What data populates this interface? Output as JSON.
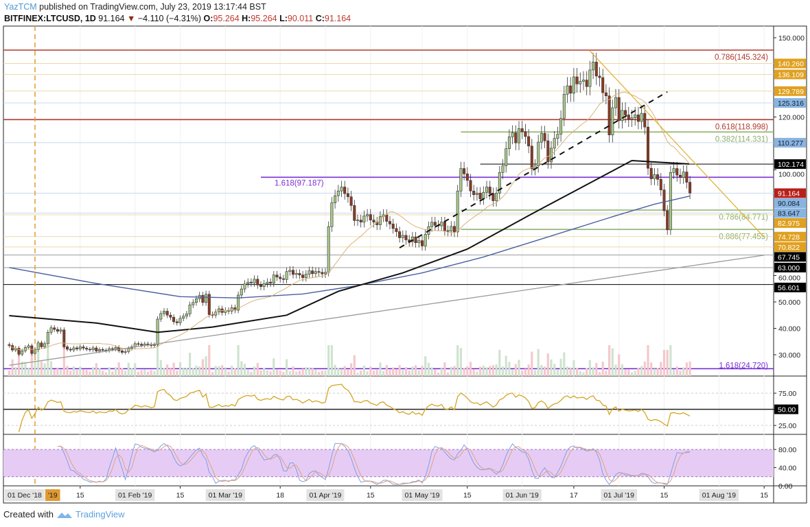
{
  "header": {
    "user": "YazTCM",
    "published": "published on TradingView.com, July 23, 2019 13:17:44 BST",
    "symbol": "BITFINEX:LTCUSD, 1D",
    "last": "91.164",
    "change_arrow": "▼",
    "change": "−4.110 (−4.31%)",
    "o_label": "O:",
    "o": "95.264",
    "h_label": "H:",
    "h": "95.264",
    "l_label": "L:",
    "l": "90.011",
    "c_label": "C:",
    "c": "91.164"
  },
  "footer": {
    "created_with": "Created with",
    "brand": "TradingView",
    "logo_icon": "tradingview-cloud-icon"
  },
  "colors": {
    "up": "#a8c98a",
    "down": "#8b3a22",
    "ma20": "#d9b27a",
    "ma100": "#111111",
    "ma200": "#4a5fa0",
    "fib_red": "#b03a2e",
    "fib_green": "#8fb06a",
    "fib_purple": "#7a2fd6",
    "trend": "#e0b43a",
    "rsi": "#d4a521",
    "stoch_k": "#7f9fe0",
    "stoch_d": "#e0a080",
    "stoch_band": "#e6ccf5"
  },
  "chart_data": {
    "type": "candlestick",
    "start_date": "2018-12-24",
    "closes": [
      33.5,
      31.8,
      32.5,
      30.2,
      31.5,
      32.8,
      33.4,
      30.5,
      31.9,
      34.5,
      33.0,
      34.2,
      38.5,
      40.2,
      39.6,
      38.9,
      39.4,
      33.0,
      32.1,
      31.8,
      32.6,
      32.2,
      33.0,
      32.5,
      32.1,
      31.9,
      32.6,
      31.4,
      32.0,
      31.7,
      31.6,
      32.3,
      32.1,
      32.8,
      31.5,
      30.9,
      31.2,
      32.4,
      33.0,
      34.2,
      34.0,
      33.6,
      34.1,
      33.9,
      33.5,
      33.8,
      43.5,
      45.6,
      46.5,
      45.0,
      44.2,
      42.5,
      42.1,
      43.8,
      44.6,
      45.5,
      48.9,
      49.8,
      51.2,
      52.5,
      49.8,
      52.9,
      45.2,
      45.0,
      46.2,
      47.4,
      46.0,
      46.8,
      46.5,
      47.8,
      46.9,
      52.6,
      54.9,
      56.8,
      57.5,
      57.2,
      58.6,
      56.4,
      55.8,
      56.9,
      57.5,
      57.1,
      60.2,
      59.4,
      58.8,
      58.5,
      61.5,
      62.0,
      60.4,
      60.8,
      60.2,
      59.2,
      60.5,
      61.8,
      60.7,
      61.5,
      61.2,
      60.6,
      61.2,
      78.5,
      87.5,
      90.2,
      92.0,
      93.5,
      91.0,
      89.8,
      86.5,
      80.8,
      81.0,
      80.2,
      82.5,
      83.1,
      81.0,
      80.2,
      79.2,
      82.3,
      83.0,
      80.5,
      79.5,
      77.8,
      76.6,
      74.3,
      75.2,
      73.5,
      72.8,
      74.6,
      72.4,
      73.2,
      71.2,
      75.6,
      78.5,
      80.2,
      79.0,
      78.8,
      80.2,
      77.0,
      76.8,
      78.6,
      76.5,
      92.0,
      100.5,
      98.5,
      96.0,
      92.0,
      90.6,
      91.2,
      89.0,
      91.5,
      93.5,
      91.0,
      88.3,
      91.2,
      99.0,
      101.5,
      108.0,
      112.5,
      114.0,
      110.2,
      115.6,
      114.5,
      112.6,
      109.0,
      100.4,
      101.5,
      110.5,
      113.8,
      111.0,
      103.0,
      108.2,
      111.9,
      113.5,
      119.5,
      128.6,
      131.8,
      129.0,
      135.2,
      132.5,
      133.5,
      134.0,
      131.5,
      137.8,
      140.8,
      135.5,
      134.9,
      129.2,
      128.0,
      113.2,
      123.5,
      127.4,
      118.6,
      122.5,
      120.8,
      119.2,
      119.7,
      120.8,
      118.3,
      121.4,
      116.2,
      100.6,
      96.6,
      98.2,
      96.4,
      92.4,
      84.5,
      77.3,
      99.0,
      100.5,
      98.0,
      97.1,
      99.2,
      95.3,
      91.2
    ],
    "ma200": [
      [
        "2018-12-24",
        63
      ],
      [
        "2019-01-20",
        57
      ],
      [
        "2019-02-15",
        52
      ],
      [
        "2019-03-05",
        51.5
      ],
      [
        "2019-03-25",
        53
      ],
      [
        "2019-04-10",
        56
      ],
      [
        "2019-05-01",
        61
      ],
      [
        "2019-05-20",
        67
      ],
      [
        "2019-06-10",
        75
      ],
      [
        "2019-07-01",
        83
      ],
      [
        "2019-07-12",
        87
      ],
      [
        "2019-07-23",
        90.084
      ]
    ],
    "ma100": [
      [
        "2018-12-24",
        44.8
      ],
      [
        "2019-01-20",
        42
      ],
      [
        "2019-02-08",
        38.5
      ],
      [
        "2019-02-25",
        40.5
      ],
      [
        "2019-03-20",
        45
      ],
      [
        "2019-04-05",
        54
      ],
      [
        "2019-04-25",
        61
      ],
      [
        "2019-05-15",
        70
      ],
      [
        "2019-06-05",
        84
      ],
      [
        "2019-06-25",
        97
      ],
      [
        "2019-07-05",
        103.5
      ],
      [
        "2019-07-12",
        103
      ],
      [
        "2019-07-23",
        102.2
      ]
    ],
    "price_ticks": [
      150,
      120,
      100,
      60,
      50,
      40,
      30
    ],
    "price_range": [
      22,
      156
    ],
    "levels": [
      {
        "price": 145.324,
        "kind": "fib",
        "color": "#b03a2e",
        "label": "0.786(145.324)"
      },
      {
        "price": 140.26,
        "kind": "tag",
        "color": "#e0a020",
        "tag": "140.260"
      },
      {
        "price": 136.109,
        "kind": "tag",
        "color": "#e0a020",
        "tag": "136.109"
      },
      {
        "price": 129.789,
        "kind": "tag",
        "color": "#e0a020",
        "tag": "129.789"
      },
      {
        "price": 125.316,
        "kind": "tag",
        "color": "#8ab4e0",
        "tag": "125.316"
      },
      {
        "price": 118.998,
        "kind": "fib",
        "color": "#b03a2e",
        "label": "0.618(118.998)"
      },
      {
        "price": 114.331,
        "kind": "fib",
        "color": "#8fb06a",
        "label": "0.382(114.331)",
        "from": "2019-05-13"
      },
      {
        "price": 110.277,
        "kind": "tag",
        "color": "#8ab4e0",
        "tag": "110.277"
      },
      {
        "price": 102.174,
        "kind": "tag",
        "color": "#000000",
        "tag": "102.174",
        "from": "2019-05-19",
        "line": "#000000"
      },
      {
        "price": 97.187,
        "kind": "fib",
        "color": "#7a2fd6",
        "label": "1.618(97.187)",
        "from": "2019-03-12"
      },
      {
        "price": 91.164,
        "kind": "tag",
        "color": "#b8201a",
        "tag": "91.164"
      },
      {
        "price": 90.084,
        "kind": "tag",
        "color": "#8ab4e0",
        "tag": "90.084",
        "noline": true
      },
      {
        "price": 84.771,
        "kind": "fib",
        "color": "#8fb06a",
        "label": "0.786(84.771)",
        "from": "2019-05-13"
      },
      {
        "price": 83.647,
        "kind": "tag",
        "color": "#8ab4e0",
        "tag": "83.647"
      },
      {
        "price": 82.975,
        "kind": "tag",
        "color": "#e0a020",
        "tag": "82.975"
      },
      {
        "price": 77.455,
        "kind": "fib",
        "color": "#8fb06a",
        "label": "0.886(77.455)",
        "from": "2019-05-13"
      },
      {
        "price": 74.728,
        "kind": "tag",
        "color": "#e0a020",
        "tag": "74.728"
      },
      {
        "price": 70.822,
        "kind": "tag",
        "color": "#e0a020",
        "tag": "70.822"
      },
      {
        "price": 67.745,
        "kind": "tag",
        "color": "#000000",
        "tag": "67.745",
        "line": "#999999"
      },
      {
        "price": 63.0,
        "kind": "tag",
        "color": "#000000",
        "tag": "63.000",
        "line": "#999999"
      },
      {
        "price": 56.601,
        "kind": "tag",
        "color": "#000000",
        "tag": "56.601",
        "line": "#000000"
      },
      {
        "price": 24.72,
        "kind": "fib",
        "color": "#7a2fd6",
        "label": "1.618(24.720)"
      }
    ],
    "trendlines": [
      {
        "name": "descending-resistance",
        "from": [
          "2019-06-22",
          145
        ],
        "to": [
          "2019-08-15",
          74.5
        ],
        "color": "#e0b43a",
        "dash": false
      },
      {
        "name": "ascending-support",
        "from": [
          "2019-04-24",
          70.5
        ],
        "to": [
          "2019-07-16",
          129.5
        ],
        "color": "#111111",
        "dash": true
      },
      {
        "name": "long-term-support",
        "from": [
          "2018-12-24",
          26
        ],
        "to": [
          "2019-08-15",
          67.7
        ],
        "color": "#999999",
        "dash": false
      }
    ],
    "marker_date": "2019-01-01",
    "rsi": {
      "ticks": [
        75,
        50,
        25
      ],
      "highlight": "50.00"
    },
    "stoch_rsi": {
      "ticks": [
        "80.00",
        "40.00",
        "0.00"
      ],
      "band": [
        20,
        80
      ]
    },
    "time_labels": [
      {
        "text": "01 Dec '18",
        "date": "2018-12-21",
        "boxed": true
      },
      {
        "text": "'19",
        "date": "2019-01-03",
        "marker": true
      },
      {
        "text": "15",
        "date": "2019-01-15"
      },
      {
        "text": "01 Feb '19",
        "date": "2019-02-01",
        "boxed": true
      },
      {
        "text": "15",
        "date": "2019-02-15"
      },
      {
        "text": "01 Mar '19",
        "date": "2019-03-01",
        "boxed": true
      },
      {
        "text": "18",
        "date": "2019-03-18"
      },
      {
        "text": "01 Apr '19",
        "date": "2019-04-01",
        "boxed": true
      },
      {
        "text": "15",
        "date": "2019-04-15"
      },
      {
        "text": "01 May '19",
        "date": "2019-05-01",
        "boxed": true
      },
      {
        "text": "15",
        "date": "2019-05-15"
      },
      {
        "text": "01 Jun '19",
        "date": "2019-06-01",
        "boxed": true
      },
      {
        "text": "17",
        "date": "2019-06-17"
      },
      {
        "text": "01 Jul '19",
        "date": "2019-07-01",
        "boxed": true
      },
      {
        "text": "15",
        "date": "2019-07-15"
      },
      {
        "text": "01 Aug '19",
        "date": "2019-08-01",
        "boxed": true
      },
      {
        "text": "15",
        "date": "2019-08-15"
      }
    ]
  }
}
